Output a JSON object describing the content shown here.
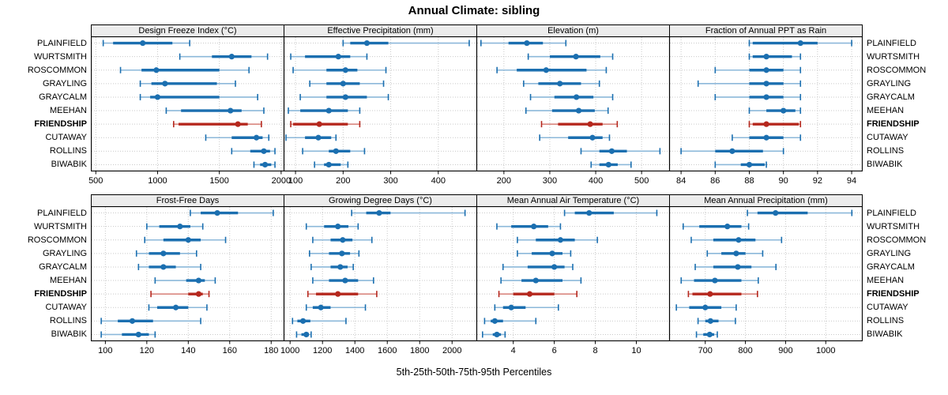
{
  "title": "Annual Climate: sibling",
  "caption": "5th-25th-50th-75th-95th Percentiles",
  "highlight_site": "FRIENDSHIP",
  "colors": {
    "main_blue": "#1b6fb0",
    "light_blue": "#8cb8da",
    "main_red": "#b5271d",
    "light_red": "#d98880",
    "grid": "#c9c9c9",
    "header_bg": "#ececec",
    "border": "#000000"
  },
  "sites": [
    {
      "name": "PLAINFIELD",
      "highlight": false
    },
    {
      "name": "WURTSMITH",
      "highlight": false
    },
    {
      "name": "ROSCOMMON",
      "highlight": false
    },
    {
      "name": "GRAYLING",
      "highlight": false
    },
    {
      "name": "GRAYCALM",
      "highlight": false
    },
    {
      "name": "MEEHAN",
      "highlight": false
    },
    {
      "name": "FRIENDSHIP",
      "highlight": true
    },
    {
      "name": "CUTAWAY",
      "highlight": false
    },
    {
      "name": "ROLLINS",
      "highlight": false
    },
    {
      "name": "BIWABIK",
      "highlight": false
    }
  ],
  "chart_data": [
    {
      "type": "interval",
      "title": "Design Freeze Index (°C)",
      "xlim": [
        460,
        2020
      ],
      "ticks": [
        500,
        1000,
        1500,
        2000
      ],
      "percentiles": [
        "5th",
        "25th",
        "50th",
        "75th",
        "95th"
      ],
      "series": [
        {
          "site": "PLAINFIELD",
          "values": [
            560,
            640,
            880,
            1120,
            1260
          ]
        },
        {
          "site": "WURTSMITH",
          "values": [
            1180,
            1440,
            1600,
            1760,
            1890
          ]
        },
        {
          "site": "ROSCOMMON",
          "values": [
            700,
            870,
            990,
            1500,
            1740
          ]
        },
        {
          "site": "GRAYLING",
          "values": [
            860,
            950,
            1060,
            1480,
            1630
          ]
        },
        {
          "site": "GRAYCALM",
          "values": [
            860,
            940,
            1000,
            1500,
            1810
          ]
        },
        {
          "site": "MEEHAN",
          "values": [
            1070,
            1190,
            1590,
            1680,
            1860
          ]
        },
        {
          "site": "FRIENDSHIP",
          "values": [
            1130,
            1170,
            1650,
            1730,
            1840
          ]
        },
        {
          "site": "CUTAWAY",
          "values": [
            1390,
            1600,
            1800,
            1850,
            1900
          ]
        },
        {
          "site": "ROLLINS",
          "values": [
            1600,
            1750,
            1860,
            1910,
            1950
          ]
        },
        {
          "site": "BIWABIK",
          "values": [
            1780,
            1830,
            1870,
            1920,
            1950
          ]
        }
      ]
    },
    {
      "type": "interval",
      "title": "Effective Precipitation (mm)",
      "xlim": [
        75,
        480
      ],
      "ticks": [
        100,
        200,
        300,
        400
      ],
      "percentiles": [
        "5th",
        "25th",
        "50th",
        "75th",
        "95th"
      ],
      "series": [
        {
          "site": "PLAINFIELD",
          "values": [
            200,
            215,
            250,
            295,
            465
          ]
        },
        {
          "site": "WURTSMITH",
          "values": [
            90,
            120,
            190,
            215,
            250
          ]
        },
        {
          "site": "ROSCOMMON",
          "values": [
            95,
            165,
            205,
            230,
            290
          ]
        },
        {
          "site": "GRAYLING",
          "values": [
            130,
            165,
            200,
            235,
            285
          ]
        },
        {
          "site": "GRAYCALM",
          "values": [
            110,
            165,
            205,
            250,
            295
          ]
        },
        {
          "site": "MEEHAN",
          "values": [
            85,
            110,
            170,
            210,
            235
          ]
        },
        {
          "site": "FRIENDSHIP",
          "values": [
            90,
            95,
            150,
            210,
            235
          ]
        },
        {
          "site": "CUTAWAY",
          "values": [
            80,
            120,
            148,
            175,
            185
          ]
        },
        {
          "site": "ROLLINS",
          "values": [
            115,
            170,
            185,
            215,
            245
          ]
        },
        {
          "site": "BIWABIK",
          "values": [
            140,
            160,
            170,
            195,
            210
          ]
        }
      ]
    },
    {
      "type": "interval",
      "title": "Elevation (m)",
      "xlim": [
        140,
        560
      ],
      "ticks": [
        200,
        300,
        400,
        500
      ],
      "percentiles": [
        "5th",
        "25th",
        "50th",
        "75th",
        "95th"
      ],
      "series": [
        {
          "site": "PLAINFIELD",
          "values": [
            150,
            210,
            250,
            285,
            335
          ]
        },
        {
          "site": "WURTSMITH",
          "values": [
            253,
            300,
            357,
            410,
            437
          ]
        },
        {
          "site": "ROSCOMMON",
          "values": [
            185,
            228,
            292,
            380,
            423
          ]
        },
        {
          "site": "GRAYLING",
          "values": [
            243,
            275,
            322,
            368,
            408
          ]
        },
        {
          "site": "GRAYCALM",
          "values": [
            258,
            310,
            358,
            395,
            437
          ]
        },
        {
          "site": "MEEHAN",
          "values": [
            248,
            305,
            363,
            398,
            427
          ]
        },
        {
          "site": "FRIENDSHIP",
          "values": [
            282,
            318,
            388,
            415,
            447
          ]
        },
        {
          "site": "CUTAWAY",
          "values": [
            278,
            340,
            393,
            415,
            430
          ]
        },
        {
          "site": "ROLLINS",
          "values": [
            368,
            408,
            435,
            468,
            540
          ]
        },
        {
          "site": "BIWABIK",
          "values": [
            390,
            408,
            428,
            448,
            477
          ]
        }
      ]
    },
    {
      "type": "interval",
      "title": "Fraction of Annual PPT as Rain",
      "xlim": [
        83.3,
        94.6
      ],
      "ticks": [
        84,
        86,
        88,
        90,
        92,
        94
      ],
      "percentiles": [
        "5th",
        "25th",
        "50th",
        "75th",
        "95th"
      ],
      "series": [
        {
          "site": "PLAINFIELD",
          "values": [
            88,
            88.2,
            91,
            92,
            94
          ]
        },
        {
          "site": "WURTSMITH",
          "values": [
            88,
            88.2,
            89,
            90.5,
            91
          ]
        },
        {
          "site": "ROSCOMMON",
          "values": [
            86,
            88,
            89,
            90,
            91
          ]
        },
        {
          "site": "GRAYLING",
          "values": [
            85,
            88,
            89,
            90,
            91
          ]
        },
        {
          "site": "GRAYCALM",
          "values": [
            86,
            88,
            89,
            90,
            91
          ]
        },
        {
          "site": "MEEHAN",
          "values": [
            88,
            89,
            90,
            90.7,
            91
          ]
        },
        {
          "site": "FRIENDSHIP",
          "values": [
            88,
            88.2,
            89,
            90.9,
            91
          ]
        },
        {
          "site": "CUTAWAY",
          "values": [
            87,
            88,
            89,
            90,
            91
          ]
        },
        {
          "site": "ROLLINS",
          "values": [
            84,
            86,
            87,
            88.8,
            90
          ]
        },
        {
          "site": "BIWABIK",
          "values": [
            86,
            87.5,
            88,
            88.9,
            89
          ]
        }
      ]
    },
    {
      "type": "interval",
      "title": "Frost-Free Days",
      "xlim": [
        93,
        186
      ],
      "ticks": [
        100,
        120,
        140,
        160,
        180
      ],
      "percentiles": [
        "5th",
        "25th",
        "50th",
        "75th",
        "95th"
      ],
      "series": [
        {
          "site": "PLAINFIELD",
          "values": [
            141,
            146,
            154,
            164,
            181
          ]
        },
        {
          "site": "WURTSMITH",
          "values": [
            120,
            126,
            136,
            141,
            147
          ]
        },
        {
          "site": "ROSCOMMON",
          "values": [
            119,
            128,
            140,
            146,
            158
          ]
        },
        {
          "site": "GRAYLING",
          "values": [
            115,
            121,
            128,
            136,
            144
          ]
        },
        {
          "site": "GRAYCALM",
          "values": [
            116,
            121,
            128,
            134,
            146
          ]
        },
        {
          "site": "MEEHAN",
          "values": [
            124,
            139,
            145,
            148,
            153
          ]
        },
        {
          "site": "FRIENDSHIP",
          "values": [
            122,
            140,
            145,
            147,
            150
          ]
        },
        {
          "site": "CUTAWAY",
          "values": [
            121,
            125,
            134,
            140,
            149
          ]
        },
        {
          "site": "ROLLINS",
          "values": [
            98,
            106,
            113,
            123,
            146
          ]
        },
        {
          "site": "BIWABIK",
          "values": [
            98,
            108,
            116,
            121,
            124
          ]
        }
      ]
    },
    {
      "type": "interval",
      "title": "Growing Degree Days (°C)",
      "xlim": [
        960,
        2150
      ],
      "ticks": [
        1000,
        1200,
        1400,
        1600,
        1800,
        2000
      ],
      "percentiles": [
        "5th",
        "25th",
        "50th",
        "75th",
        "95th"
      ],
      "series": [
        {
          "site": "PLAINFIELD",
          "values": [
            1380,
            1470,
            1550,
            1620,
            2080
          ]
        },
        {
          "site": "WURTSMITH",
          "values": [
            1100,
            1210,
            1295,
            1360,
            1420
          ]
        },
        {
          "site": "ROSCOMMON",
          "values": [
            1140,
            1250,
            1325,
            1385,
            1505
          ]
        },
        {
          "site": "GRAYLING",
          "values": [
            1120,
            1240,
            1320,
            1370,
            1425
          ]
        },
        {
          "site": "GRAYCALM",
          "values": [
            1130,
            1250,
            1310,
            1355,
            1390
          ]
        },
        {
          "site": "MEEHAN",
          "values": [
            1140,
            1240,
            1340,
            1420,
            1515
          ]
        },
        {
          "site": "FRIENDSHIP",
          "values": [
            1110,
            1160,
            1295,
            1420,
            1535
          ]
        },
        {
          "site": "CUTAWAY",
          "values": [
            1100,
            1140,
            1190,
            1250,
            1465
          ]
        },
        {
          "site": "ROLLINS",
          "values": [
            1015,
            1045,
            1080,
            1125,
            1345
          ]
        },
        {
          "site": "BIWABIK",
          "values": [
            1040,
            1070,
            1100,
            1115,
            1130
          ]
        }
      ]
    },
    {
      "type": "interval",
      "title": "Mean Annual Air Temperature (°C)",
      "xlim": [
        2.2,
        11.6
      ],
      "ticks": [
        4,
        6,
        8,
        10
      ],
      "percentiles": [
        "5th",
        "25th",
        "50th",
        "75th",
        "95th"
      ],
      "series": [
        {
          "site": "PLAINFIELD",
          "values": [
            6.5,
            7.0,
            7.7,
            8.9,
            11.0
          ]
        },
        {
          "site": "WURTSMITH",
          "values": [
            3.2,
            3.9,
            5.0,
            5.7,
            6.3
          ]
        },
        {
          "site": "ROSCOMMON",
          "values": [
            4.2,
            5.1,
            6.3,
            7.0,
            8.1
          ]
        },
        {
          "site": "GRAYLING",
          "values": [
            4.2,
            4.9,
            5.9,
            6.4,
            6.8
          ]
        },
        {
          "site": "GRAYCALM",
          "values": [
            3.5,
            4.7,
            6.0,
            6.5,
            6.9
          ]
        },
        {
          "site": "MEEHAN",
          "values": [
            3.4,
            4.4,
            5.1,
            6.4,
            7.3
          ]
        },
        {
          "site": "FRIENDSHIP",
          "values": [
            3.3,
            4.0,
            4.8,
            6.0,
            7.1
          ]
        },
        {
          "site": "CUTAWAY",
          "values": [
            3.1,
            3.5,
            3.9,
            4.6,
            6.2
          ]
        },
        {
          "site": "ROLLINS",
          "values": [
            2.6,
            2.9,
            3.1,
            3.5,
            5.1
          ]
        },
        {
          "site": "BIWABIK",
          "values": [
            2.5,
            3.0,
            3.2,
            3.4,
            3.6
          ]
        }
      ]
    },
    {
      "type": "interval",
      "title": "Mean Annual Precipitation (mm)",
      "xlim": [
        610,
        1090
      ],
      "ticks": [
        700,
        800,
        900,
        1000
      ],
      "percentiles": [
        "5th",
        "25th",
        "50th",
        "75th",
        "95th"
      ],
      "series": [
        {
          "site": "PLAINFIELD",
          "values": [
            805,
            830,
            875,
            955,
            1065
          ]
        },
        {
          "site": "WURTSMITH",
          "values": [
            645,
            685,
            755,
            790,
            808
          ]
        },
        {
          "site": "ROSCOMMON",
          "values": [
            665,
            720,
            783,
            825,
            890
          ]
        },
        {
          "site": "GRAYLING",
          "values": [
            705,
            740,
            777,
            800,
            843
          ]
        },
        {
          "site": "GRAYCALM",
          "values": [
            675,
            720,
            781,
            815,
            876
          ]
        },
        {
          "site": "MEEHAN",
          "values": [
            640,
            672,
            724,
            790,
            832
          ]
        },
        {
          "site": "FRIENDSHIP",
          "values": [
            658,
            668,
            712,
            790,
            830
          ]
        },
        {
          "site": "CUTAWAY",
          "values": [
            628,
            660,
            700,
            740,
            777
          ]
        },
        {
          "site": "ROLLINS",
          "values": [
            682,
            700,
            713,
            733,
            775
          ]
        },
        {
          "site": "BIWABIK",
          "values": [
            678,
            695,
            711,
            722,
            730
          ]
        }
      ]
    }
  ]
}
